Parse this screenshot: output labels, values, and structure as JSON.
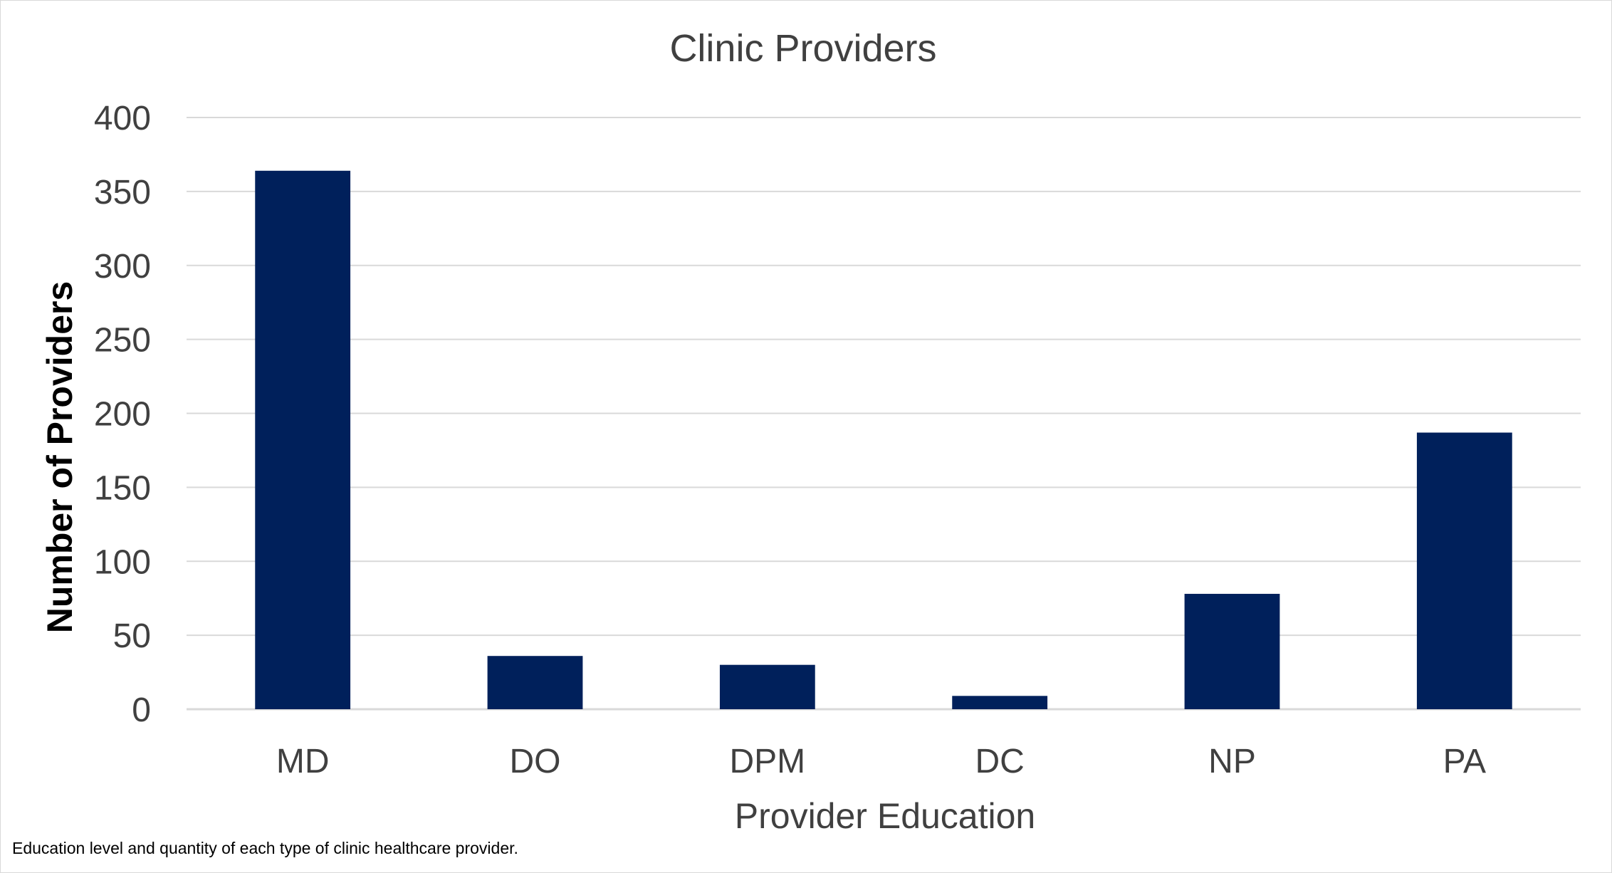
{
  "chart_data": {
    "type": "bar",
    "title": "Clinic Providers",
    "xlabel": "Provider Education",
    "ylabel": "Number of Providers",
    "categories": [
      "MD",
      "DO",
      "DPM",
      "DC",
      "NP",
      "PA"
    ],
    "values": [
      364,
      36,
      30,
      9,
      78,
      187
    ],
    "ylim": [
      0,
      400
    ],
    "yticks": [
      0,
      50,
      100,
      150,
      200,
      250,
      300,
      350,
      400
    ],
    "grid": true,
    "legend": "none",
    "bar_color": "#00205B",
    "grid_color": "#d9d9d9"
  },
  "caption": "Education level and quantity of each type of clinic healthcare provider."
}
